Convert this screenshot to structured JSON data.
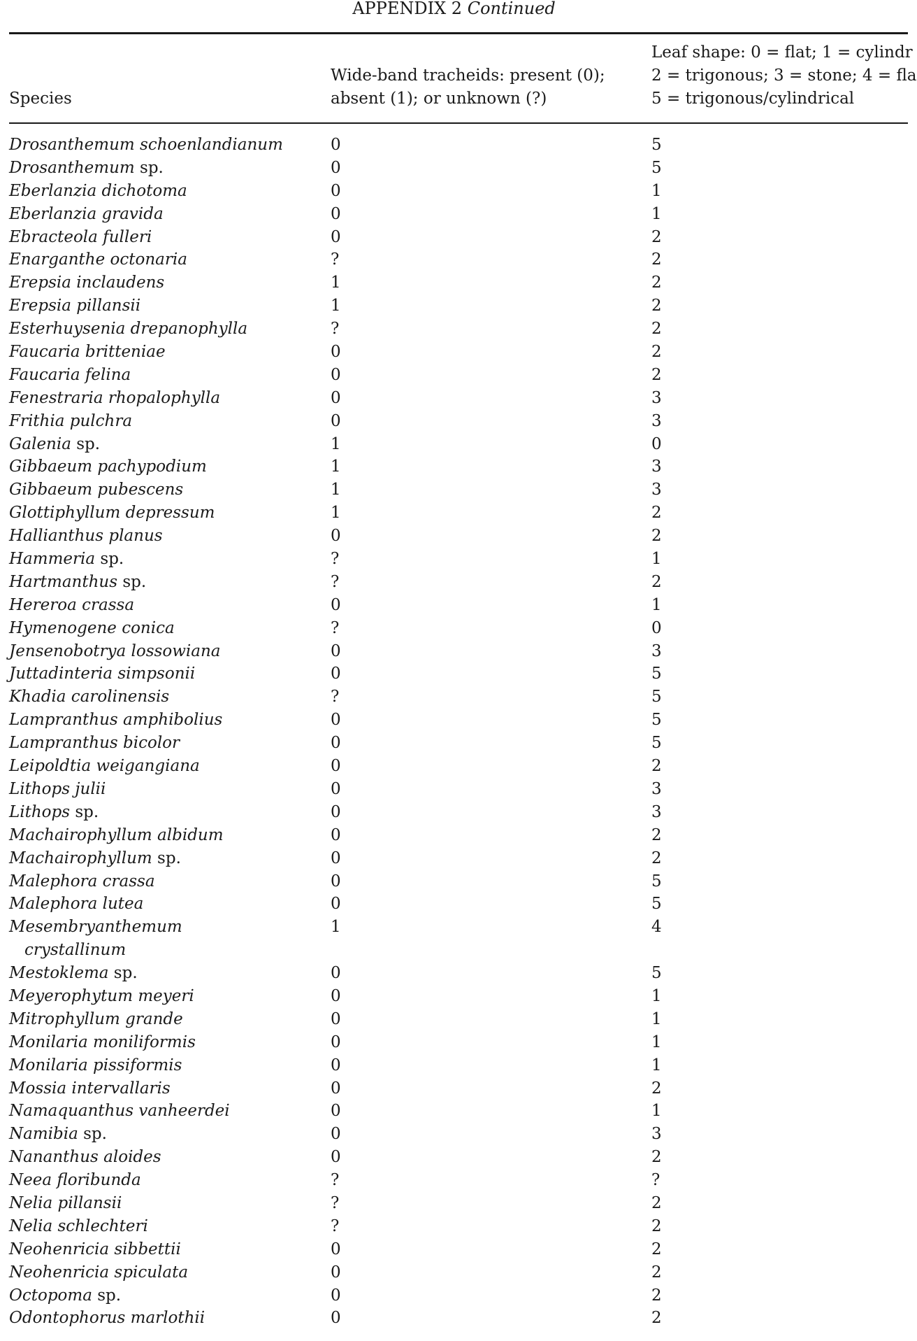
{
  "page": {
    "title": "APPENDIX 2",
    "title_suffix": "Continued"
  },
  "table": {
    "headers": {
      "species": "Species",
      "tracheids": [
        "Wide-band tracheids: present (0);",
        "absent (1); or unknown (?)"
      ],
      "leaf_shape": [
        "Leaf shape: 0 = flat; 1 = cylindr",
        "2 = trigonous; 3 = stone; 4 = fla",
        "5 = trigonous/cylindrical"
      ]
    },
    "rows": [
      {
        "name": "Drosanthemum schoenlandianum",
        "sp": "",
        "tracheids": "0",
        "leaf": "5"
      },
      {
        "name": "Drosanthemum",
        "sp": "sp.",
        "tracheids": "0",
        "leaf": "5"
      },
      {
        "name": "Eberlanzia dichotoma",
        "sp": "",
        "tracheids": "0",
        "leaf": "1"
      },
      {
        "name": "Eberlanzia gravida",
        "sp": "",
        "tracheids": "0",
        "leaf": "1"
      },
      {
        "name": "Ebracteola fulleri",
        "sp": "",
        "tracheids": "0",
        "leaf": "2"
      },
      {
        "name": "Enarganthe octonaria",
        "sp": "",
        "tracheids": "?",
        "leaf": "2"
      },
      {
        "name": "Erepsia inclaudens",
        "sp": "",
        "tracheids": "1",
        "leaf": "2"
      },
      {
        "name": "Erepsia pillansii",
        "sp": "",
        "tracheids": "1",
        "leaf": "2"
      },
      {
        "name": "Esterhuysenia drepanophylla",
        "sp": "",
        "tracheids": "?",
        "leaf": "2"
      },
      {
        "name": "Faucaria britteniae",
        "sp": "",
        "tracheids": "0",
        "leaf": "2"
      },
      {
        "name": "Faucaria felina",
        "sp": "",
        "tracheids": "0",
        "leaf": "2"
      },
      {
        "name": "Fenestraria rhopalophylla",
        "sp": "",
        "tracheids": "0",
        "leaf": "3"
      },
      {
        "name": "Frithia pulchra",
        "sp": "",
        "tracheids": "0",
        "leaf": "3"
      },
      {
        "name": "Galenia",
        "sp": "sp.",
        "tracheids": "1",
        "leaf": "0"
      },
      {
        "name": "Gibbaeum pachypodium",
        "sp": "",
        "tracheids": "1",
        "leaf": "3"
      },
      {
        "name": "Gibbaeum pubescens",
        "sp": "",
        "tracheids": "1",
        "leaf": "3"
      },
      {
        "name": "Glottiphyllum depressum",
        "sp": "",
        "tracheids": "1",
        "leaf": "2"
      },
      {
        "name": "Hallianthus planus",
        "sp": "",
        "tracheids": "0",
        "leaf": "2"
      },
      {
        "name": "Hammeria",
        "sp": "sp.",
        "tracheids": "?",
        "leaf": "1"
      },
      {
        "name": "Hartmanthus",
        "sp": "sp.",
        "tracheids": "?",
        "leaf": "2"
      },
      {
        "name": "Hereroa crassa",
        "sp": "",
        "tracheids": "0",
        "leaf": "1"
      },
      {
        "name": "Hymenogene conica",
        "sp": "",
        "tracheids": "?",
        "leaf": "0"
      },
      {
        "name": "Jensenobotrya lossowiana",
        "sp": "",
        "tracheids": "0",
        "leaf": "3"
      },
      {
        "name": "Juttadinteria simpsonii",
        "sp": "",
        "tracheids": "0",
        "leaf": "5"
      },
      {
        "name": "Khadia carolinensis",
        "sp": "",
        "tracheids": "?",
        "leaf": "5"
      },
      {
        "name": "Lampranthus amphibolius",
        "sp": "",
        "tracheids": "0",
        "leaf": "5"
      },
      {
        "name": "Lampranthus bicolor",
        "sp": "",
        "tracheids": "0",
        "leaf": "5"
      },
      {
        "name": "Leipoldtia weigangiana",
        "sp": "",
        "tracheids": "0",
        "leaf": "2"
      },
      {
        "name": "Lithops julii",
        "sp": "",
        "tracheids": "0",
        "leaf": "3"
      },
      {
        "name": "Lithops",
        "sp": "sp.",
        "tracheids": "0",
        "leaf": "3"
      },
      {
        "name": "Machairophyllum albidum",
        "sp": "",
        "tracheids": "0",
        "leaf": "2"
      },
      {
        "name": "Machairophyllum",
        "sp": "sp.",
        "tracheids": "0",
        "leaf": "2"
      },
      {
        "name": "Malephora crassa",
        "sp": "",
        "tracheids": "0",
        "leaf": "5"
      },
      {
        "name": "Malephora lutea",
        "sp": "",
        "tracheids": "0",
        "leaf": "5"
      },
      {
        "name": "Mesembryanthemum",
        "name_line2": "crystallinum",
        "sp": "",
        "tracheids": "1",
        "leaf": "4"
      },
      {
        "name": "Mestoklema",
        "sp": "sp.",
        "tracheids": "0",
        "leaf": "5"
      },
      {
        "name": "Meyerophytum meyeri",
        "sp": "",
        "tracheids": "0",
        "leaf": "1"
      },
      {
        "name": "Mitrophyllum grande",
        "sp": "",
        "tracheids": "0",
        "leaf": "1"
      },
      {
        "name": "Monilaria moniliformis",
        "sp": "",
        "tracheids": "0",
        "leaf": "1"
      },
      {
        "name": "Monilaria pissiformis",
        "sp": "",
        "tracheids": "0",
        "leaf": "1"
      },
      {
        "name": "Mossia intervallaris",
        "sp": "",
        "tracheids": "0",
        "leaf": "2"
      },
      {
        "name": "Namaquanthus vanheerdei",
        "sp": "",
        "tracheids": "0",
        "leaf": "1"
      },
      {
        "name": "Namibia",
        "sp": "sp.",
        "tracheids": "0",
        "leaf": "3"
      },
      {
        "name": "Nananthus aloides",
        "sp": "",
        "tracheids": "0",
        "leaf": "2"
      },
      {
        "name": "Neea floribunda",
        "sp": "",
        "tracheids": "?",
        "leaf": "?"
      },
      {
        "name": "Nelia pillansii",
        "sp": "",
        "tracheids": "?",
        "leaf": "2"
      },
      {
        "name": "Nelia schlechteri",
        "sp": "",
        "tracheids": "?",
        "leaf": "2"
      },
      {
        "name": "Neohenricia sibbettii",
        "sp": "",
        "tracheids": "0",
        "leaf": "2"
      },
      {
        "name": "Neohenricia spiculata",
        "sp": "",
        "tracheids": "0",
        "leaf": "2"
      },
      {
        "name": "Octopoma",
        "sp": "sp.",
        "tracheids": "0",
        "leaf": "2"
      },
      {
        "name": "Odontophorus marlothii",
        "sp": "",
        "tracheids": "0",
        "leaf": "2"
      }
    ]
  }
}
